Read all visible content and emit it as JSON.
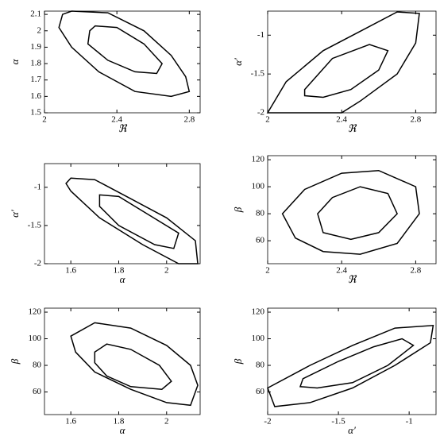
{
  "chart_data": [
    {
      "type": "contour",
      "xlabel": "ℜ",
      "ylabel": "α",
      "color": "#000000",
      "xlim": [
        2,
        2.86
      ],
      "ylim": [
        1.5,
        2.12
      ],
      "xticks": [
        2,
        2.4,
        2.8
      ],
      "yticks": [
        1.5,
        1.6,
        1.7,
        1.8,
        1.9,
        2,
        2.1
      ],
      "contours": [
        {
          "x": [
            2.15,
            2.35,
            2.55,
            2.7,
            2.78,
            2.8,
            2.7,
            2.5,
            2.3,
            2.15,
            2.08,
            2.1
          ],
          "y": [
            2.12,
            2.11,
            2.0,
            1.85,
            1.72,
            1.63,
            1.6,
            1.63,
            1.75,
            1.9,
            2.02,
            2.1
          ]
        },
        {
          "x": [
            2.28,
            2.4,
            2.55,
            2.65,
            2.62,
            2.5,
            2.35,
            2.24,
            2.25
          ],
          "y": [
            2.03,
            2.02,
            1.92,
            1.8,
            1.74,
            1.75,
            1.82,
            1.92,
            2.0
          ]
        }
      ]
    },
    {
      "type": "contour",
      "xlabel": "ℜ",
      "ylabel": "α′",
      "color": "#000000",
      "xlim": [
        2,
        2.91
      ],
      "ylim": [
        -2,
        -0.69
      ],
      "xticks": [
        2,
        2.4,
        2.8
      ],
      "yticks": [
        -2,
        -1.5,
        -1
      ],
      "contours": [
        {
          "x": [
            2.0,
            2.1,
            2.3,
            2.5,
            2.7,
            2.82,
            2.8,
            2.7,
            2.5,
            2.4
          ],
          "y": [
            -2,
            -1.6,
            -1.2,
            -0.95,
            -0.7,
            -0.72,
            -1.1,
            -1.5,
            -1.85,
            -2.0
          ]
        },
        {
          "x": [
            2.2,
            2.35,
            2.55,
            2.65,
            2.6,
            2.45,
            2.3,
            2.2
          ],
          "y": [
            -1.7,
            -1.3,
            -1.12,
            -1.2,
            -1.45,
            -1.7,
            -1.8,
            -1.78
          ]
        }
      ]
    },
    {
      "type": "contour",
      "xlabel": "α",
      "ylabel": "α′",
      "color": "#000000",
      "xlim": [
        1.49,
        2.14
      ],
      "ylim": [
        -2,
        -0.69
      ],
      "xticks": [
        1.6,
        1.8,
        2
      ],
      "yticks": [
        -2,
        -1.5,
        -1
      ],
      "contours": [
        {
          "x": [
            1.6,
            1.7,
            1.85,
            2.0,
            2.12,
            2.13,
            2.05,
            1.9,
            1.72,
            1.6,
            1.58
          ],
          "y": [
            -0.88,
            -0.9,
            -1.15,
            -1.4,
            -1.7,
            -2.0,
            -2.0,
            -1.75,
            -1.4,
            -1.05,
            -0.95
          ]
        },
        {
          "x": [
            1.72,
            1.8,
            1.92,
            2.05,
            2.03,
            1.95,
            1.8,
            1.72
          ],
          "y": [
            -1.1,
            -1.12,
            -1.35,
            -1.6,
            -1.8,
            -1.75,
            -1.5,
            -1.25
          ]
        }
      ]
    },
    {
      "type": "contour",
      "xlabel": "ℜ",
      "ylabel": "β",
      "color": "#000000",
      "xlim": [
        2,
        2.91
      ],
      "ylim": [
        43,
        123
      ],
      "xticks": [
        2,
        2.4,
        2.8
      ],
      "yticks": [
        60,
        80,
        100,
        120
      ],
      "contours": [
        {
          "x": [
            2.08,
            2.2,
            2.4,
            2.6,
            2.8,
            2.82,
            2.7,
            2.5,
            2.3,
            2.15
          ],
          "y": [
            80,
            98,
            110,
            112,
            100,
            80,
            58,
            50,
            52,
            62
          ]
        },
        {
          "x": [
            2.27,
            2.35,
            2.5,
            2.65,
            2.7,
            2.6,
            2.45,
            2.3
          ],
          "y": [
            80,
            92,
            100,
            95,
            80,
            66,
            61,
            66
          ]
        }
      ]
    },
    {
      "type": "contour",
      "xlabel": "α",
      "ylabel": "β",
      "color": "#000000",
      "xlim": [
        1.49,
        2.14
      ],
      "ylim": [
        43,
        123
      ],
      "xticks": [
        1.6,
        1.8,
        2
      ],
      "yticks": [
        60,
        80,
        100,
        120
      ],
      "contours": [
        {
          "x": [
            1.6,
            1.7,
            1.85,
            2.0,
            2.1,
            2.13,
            2.1,
            2.0,
            1.85,
            1.7,
            1.62
          ],
          "y": [
            102,
            112,
            108,
            95,
            80,
            65,
            50,
            52,
            62,
            75,
            90
          ]
        },
        {
          "x": [
            1.7,
            1.75,
            1.85,
            1.97,
            2.02,
            1.98,
            1.85,
            1.75,
            1.7
          ],
          "y": [
            90,
            96,
            92,
            80,
            68,
            62,
            64,
            72,
            82
          ]
        }
      ]
    },
    {
      "type": "contour",
      "xlabel": "α′",
      "ylabel": "β",
      "color": "#000000",
      "xlim": [
        -2,
        -0.81
      ],
      "ylim": [
        43,
        123
      ],
      "xticks": [
        -2,
        -1.5,
        -1
      ],
      "yticks": [
        60,
        80,
        100,
        120
      ],
      "contours": [
        {
          "x": [
            -2.0,
            -1.7,
            -1.4,
            -1.1,
            -0.83,
            -0.85,
            -1.1,
            -1.4,
            -1.7,
            -1.95
          ],
          "y": [
            63,
            80,
            95,
            108,
            110,
            97,
            80,
            63,
            52,
            49
          ]
        },
        {
          "x": [
            -1.75,
            -1.5,
            -1.25,
            -1.05,
            -0.97,
            -1.15,
            -1.4,
            -1.65,
            -1.77
          ],
          "y": [
            70,
            83,
            94,
            100,
            95,
            80,
            67,
            63,
            64
          ]
        }
      ]
    }
  ]
}
